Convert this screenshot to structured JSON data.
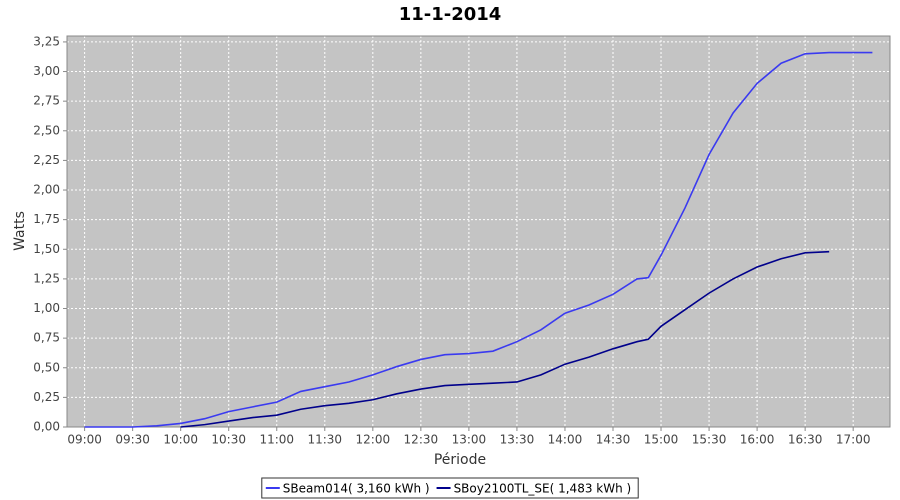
{
  "chart_data": {
    "type": "line",
    "title": "11-1-2014",
    "x_label": "Période",
    "y_label": "Watts",
    "x": [
      "09:00",
      "09:15",
      "09:30",
      "09:45",
      "10:00",
      "10:15",
      "10:30",
      "10:45",
      "11:00",
      "11:15",
      "11:30",
      "11:45",
      "12:00",
      "12:15",
      "12:30",
      "12:45",
      "13:00",
      "13:15",
      "13:30",
      "13:45",
      "14:00",
      "14:15",
      "14:30",
      "14:45",
      "14:52",
      "15:00",
      "15:15",
      "15:30",
      "15:45",
      "16:00",
      "16:15",
      "16:30",
      "16:45",
      "17:00",
      "17:12"
    ],
    "series": [
      {
        "name": "SBeam014( 3,160 kWh )",
        "color": "#3a3af0",
        "values": [
          0,
          0,
          0,
          0.01,
          0.03,
          0.07,
          0.13,
          0.17,
          0.21,
          0.3,
          0.34,
          0.38,
          0.44,
          0.51,
          0.57,
          0.61,
          0.62,
          0.64,
          0.72,
          0.82,
          0.96,
          1.03,
          1.12,
          1.25,
          1.26,
          1.45,
          1.85,
          2.3,
          2.65,
          2.9,
          3.07,
          3.15,
          3.16,
          3.16,
          3.16
        ]
      },
      {
        "name": "SBoy2100TL_SE( 1,483 kWh )",
        "color": "#00008b",
        "values": [
          null,
          null,
          null,
          null,
          0,
          0.02,
          0.05,
          0.08,
          0.1,
          0.15,
          0.18,
          0.2,
          0.23,
          0.28,
          0.32,
          0.35,
          0.36,
          0.37,
          0.38,
          0.44,
          0.53,
          0.59,
          0.66,
          0.72,
          0.74,
          0.85,
          0.99,
          1.13,
          1.25,
          1.35,
          1.42,
          1.47,
          1.48,
          null,
          null
        ]
      }
    ],
    "xlim": [
      "08:49",
      "17:23"
    ],
    "xticks": [
      "09:00",
      "09:30",
      "10:00",
      "10:30",
      "11:00",
      "11:30",
      "12:00",
      "12:30",
      "13:00",
      "13:30",
      "14:00",
      "14:30",
      "15:00",
      "15:30",
      "16:00",
      "16:30",
      "17:00"
    ],
    "ylim": [
      0,
      3.3
    ],
    "yticks": [
      {
        "value": 0,
        "label": "0,00"
      },
      {
        "value": 0.25,
        "label": "0,25"
      },
      {
        "value": 0.5,
        "label": "0,50"
      },
      {
        "value": 0.75,
        "label": "0,75"
      },
      {
        "value": 1,
        "label": "1,00"
      },
      {
        "value": 1.25,
        "label": "1,25"
      },
      {
        "value": 1.5,
        "label": "1,50"
      },
      {
        "value": 1.75,
        "label": "1,75"
      },
      {
        "value": 2,
        "label": "2,00"
      },
      {
        "value": 2.25,
        "label": "2,25"
      },
      {
        "value": 2.5,
        "label": "2,50"
      },
      {
        "value": 2.75,
        "label": "2,75"
      },
      {
        "value": 3,
        "label": "3,00"
      },
      {
        "value": 3.25,
        "label": "3,25"
      }
    ],
    "grid": true,
    "legend": "bottom"
  }
}
